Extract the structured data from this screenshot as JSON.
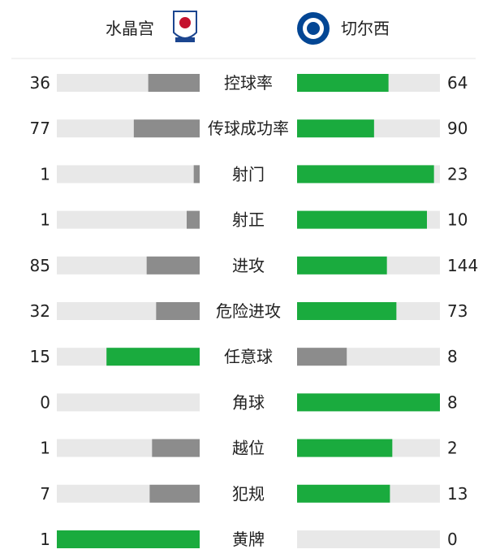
{
  "header": {
    "home": "水晶宫",
    "away": "切尔西"
  },
  "colors": {
    "leading": "#1aab3e",
    "trailing": "#8c8c8c",
    "track": "#e8e8e8"
  },
  "stats": [
    {
      "label": "控球率",
      "home": 36,
      "away": 64
    },
    {
      "label": "传球成功率",
      "home": 77,
      "away": 90
    },
    {
      "label": "射门",
      "home": 1,
      "away": 23
    },
    {
      "label": "射正",
      "home": 1,
      "away": 10
    },
    {
      "label": "进攻",
      "home": 85,
      "away": 144
    },
    {
      "label": "危险进攻",
      "home": 32,
      "away": 73
    },
    {
      "label": "任意球",
      "home": 15,
      "away": 8
    },
    {
      "label": "角球",
      "home": 0,
      "away": 8
    },
    {
      "label": "越位",
      "home": 1,
      "away": 2
    },
    {
      "label": "犯规",
      "home": 7,
      "away": 13
    },
    {
      "label": "黄牌",
      "home": 1,
      "away": 0
    }
  ]
}
